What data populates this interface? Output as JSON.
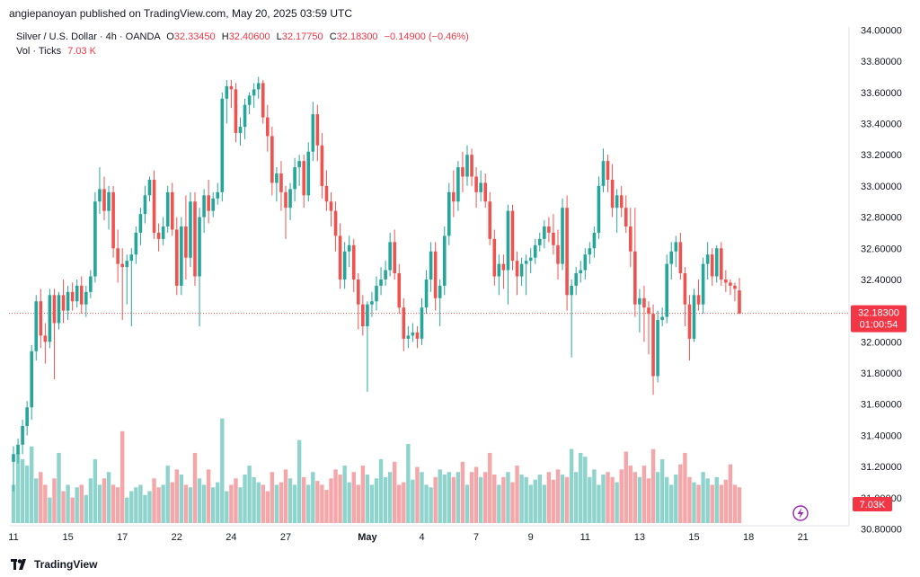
{
  "header": {
    "text": "angiepanoyan published on TradingView.com, May 20, 2025 03:59 UTC"
  },
  "legend": {
    "symbol": "Silver / U.S. Dollar · 4h · OANDA",
    "o_label": "O",
    "o_value": "32.33450",
    "h_label": "H",
    "h_value": "32.40600",
    "l_label": "L",
    "l_value": "32.17750",
    "c_label": "C",
    "c_value": "32.18300",
    "change": "−0.14900 (−0.46%)",
    "vol_label": "Vol · Ticks",
    "vol_value": "7.03 K"
  },
  "footer": {
    "brand": "TradingView"
  },
  "colors": {
    "up": "#26a69a",
    "down": "#ef5350",
    "up_vol": "#8fd3cd",
    "down_vol": "#f4a6a8",
    "price_badge": "#f23645"
  },
  "chart_data": {
    "type": "candlestick",
    "price_axis": {
      "min": 30.82,
      "max": 34.02,
      "ticks": [
        "34.00000",
        "33.80000",
        "33.60000",
        "33.40000",
        "33.20000",
        "33.00000",
        "32.80000",
        "32.60000",
        "32.40000",
        "32.20000",
        "32.00000",
        "31.80000",
        "31.60000",
        "31.40000",
        "31.20000",
        "31.00000",
        "30.80000"
      ]
    },
    "time_axis": {
      "labels": [
        {
          "text": "11",
          "index": 0
        },
        {
          "text": "15",
          "index": 12
        },
        {
          "text": "17",
          "index": 24
        },
        {
          "text": "22",
          "index": 36
        },
        {
          "text": "24",
          "index": 48
        },
        {
          "text": "27",
          "index": 60
        },
        {
          "text": "May",
          "index": 78
        },
        {
          "text": "4",
          "index": 90
        },
        {
          "text": "7",
          "index": 102
        },
        {
          "text": "9",
          "index": 114
        },
        {
          "text": "11",
          "index": 126
        },
        {
          "text": "13",
          "index": 138
        },
        {
          "text": "15",
          "index": 150
        },
        {
          "text": "18",
          "index": 162
        },
        {
          "text": "21",
          "index": 174
        }
      ]
    },
    "last_price": {
      "value": 32.183,
      "label": "32.18300",
      "countdown": "01:00:54"
    },
    "volume_label": "7.03K",
    "candles": [
      [
        31.23,
        31.33,
        31.04,
        31.28
      ],
      [
        31.28,
        31.38,
        31.22,
        31.34
      ],
      [
        31.34,
        31.5,
        31.28,
        31.46
      ],
      [
        31.46,
        31.62,
        31.4,
        31.58
      ],
      [
        31.58,
        31.98,
        31.5,
        31.94
      ],
      [
        31.94,
        32.3,
        31.88,
        32.26
      ],
      [
        32.26,
        32.34,
        31.96,
        32.04
      ],
      [
        32.04,
        32.12,
        31.86,
        32.0
      ],
      [
        32.0,
        32.34,
        31.96,
        32.3
      ],
      [
        32.3,
        32.34,
        31.76,
        32.12
      ],
      [
        32.12,
        32.32,
        32.08,
        32.3
      ],
      [
        32.3,
        32.4,
        32.12,
        32.2
      ],
      [
        32.2,
        32.36,
        32.14,
        32.32
      ],
      [
        32.32,
        32.38,
        32.2,
        32.26
      ],
      [
        32.26,
        32.4,
        32.22,
        32.36
      ],
      [
        32.36,
        32.42,
        32.18,
        32.24
      ],
      [
        32.24,
        32.36,
        32.16,
        32.32
      ],
      [
        32.32,
        32.46,
        32.28,
        32.42
      ],
      [
        32.42,
        32.96,
        32.38,
        32.9
      ],
      [
        32.9,
        33.12,
        32.82,
        32.98
      ],
      [
        32.98,
        33.06,
        32.78,
        32.84
      ],
      [
        32.84,
        33.0,
        32.72,
        32.96
      ],
      [
        32.96,
        33.0,
        32.54,
        32.6
      ],
      [
        32.6,
        32.72,
        32.38,
        32.5
      ],
      [
        32.5,
        32.6,
        32.14,
        32.48
      ],
      [
        32.48,
        32.56,
        32.24,
        32.52
      ],
      [
        32.52,
        32.6,
        32.1,
        32.56
      ],
      [
        32.56,
        32.74,
        32.5,
        32.7
      ],
      [
        32.7,
        32.86,
        32.62,
        32.82
      ],
      [
        32.82,
        33.0,
        32.76,
        32.94
      ],
      [
        32.94,
        33.06,
        32.9,
        33.04
      ],
      [
        33.04,
        33.1,
        32.66,
        32.7
      ],
      [
        32.7,
        32.76,
        32.58,
        32.66
      ],
      [
        32.66,
        32.8,
        32.62,
        32.74
      ],
      [
        32.74,
        33.0,
        32.7,
        32.96
      ],
      [
        32.96,
        33.02,
        32.68,
        32.72
      ],
      [
        32.72,
        32.8,
        32.3,
        32.36
      ],
      [
        32.36,
        32.8,
        32.3,
        32.74
      ],
      [
        32.74,
        32.94,
        32.4,
        32.54
      ],
      [
        32.54,
        32.96,
        32.48,
        32.9
      ],
      [
        32.9,
        32.96,
        32.36,
        32.42
      ],
      [
        32.42,
        32.86,
        32.1,
        32.8
      ],
      [
        32.8,
        32.98,
        32.7,
        32.94
      ],
      [
        32.94,
        33.04,
        32.76,
        32.84
      ],
      [
        32.84,
        32.96,
        32.8,
        32.92
      ],
      [
        32.92,
        33.02,
        32.88,
        32.96
      ],
      [
        32.96,
        33.6,
        32.9,
        33.56
      ],
      [
        33.56,
        33.68,
        33.4,
        33.64
      ],
      [
        33.64,
        33.68,
        33.5,
        33.62
      ],
      [
        33.62,
        33.66,
        33.28,
        33.34
      ],
      [
        33.34,
        33.44,
        33.26,
        33.38
      ],
      [
        33.38,
        33.56,
        33.3,
        33.52
      ],
      [
        33.52,
        33.6,
        33.46,
        33.58
      ],
      [
        33.58,
        33.66,
        33.5,
        33.62
      ],
      [
        33.62,
        33.7,
        33.56,
        33.66
      ],
      [
        33.66,
        33.68,
        33.4,
        33.44
      ],
      [
        33.44,
        33.52,
        33.22,
        33.32
      ],
      [
        33.32,
        33.38,
        32.94,
        33.02
      ],
      [
        33.02,
        33.12,
        32.9,
        33.08
      ],
      [
        33.08,
        33.16,
        32.84,
        32.96
      ],
      [
        32.96,
        33.0,
        32.66,
        32.86
      ],
      [
        32.86,
        33.02,
        32.78,
        32.98
      ],
      [
        32.98,
        33.18,
        32.9,
        33.12
      ],
      [
        33.12,
        33.2,
        33.0,
        33.16
      ],
      [
        33.16,
        33.2,
        32.86,
        32.94
      ],
      [
        32.94,
        33.28,
        32.9,
        33.22
      ],
      [
        33.22,
        33.54,
        33.16,
        33.46
      ],
      [
        33.46,
        33.52,
        33.16,
        33.26
      ],
      [
        33.26,
        33.34,
        32.92,
        33.0
      ],
      [
        33.0,
        33.1,
        32.84,
        32.9
      ],
      [
        32.9,
        32.96,
        32.74,
        32.84
      ],
      [
        32.84,
        32.9,
        32.58,
        32.68
      ],
      [
        32.68,
        32.76,
        32.34,
        32.4
      ],
      [
        32.4,
        32.64,
        32.34,
        32.58
      ],
      [
        32.58,
        32.68,
        32.48,
        32.62
      ],
      [
        32.62,
        32.66,
        32.32,
        32.4
      ],
      [
        32.4,
        32.44,
        32.08,
        32.24
      ],
      [
        32.24,
        32.3,
        32.04,
        32.1
      ],
      [
        32.1,
        32.26,
        31.68,
        32.24
      ],
      [
        32.24,
        32.32,
        32.16,
        32.26
      ],
      [
        32.26,
        32.42,
        32.2,
        32.36
      ],
      [
        32.36,
        32.48,
        32.3,
        32.4
      ],
      [
        32.4,
        32.52,
        32.36,
        32.46
      ],
      [
        32.46,
        32.7,
        32.42,
        32.64
      ],
      [
        32.64,
        32.72,
        32.4,
        32.44
      ],
      [
        32.44,
        32.5,
        32.18,
        32.22
      ],
      [
        32.22,
        32.28,
        31.94,
        32.02
      ],
      [
        32.02,
        32.1,
        31.96,
        32.04
      ],
      [
        32.04,
        32.12,
        32.0,
        32.06
      ],
      [
        32.06,
        32.1,
        31.96,
        32.02
      ],
      [
        32.02,
        32.28,
        31.98,
        32.22
      ],
      [
        32.22,
        32.46,
        32.18,
        32.4
      ],
      [
        32.4,
        32.64,
        32.32,
        32.58
      ],
      [
        32.58,
        32.64,
        32.2,
        32.28
      ],
      [
        32.28,
        32.4,
        32.1,
        32.36
      ],
      [
        32.36,
        32.74,
        32.3,
        32.68
      ],
      [
        32.68,
        33.02,
        32.62,
        32.96
      ],
      [
        32.96,
        33.1,
        32.8,
        32.9
      ],
      [
        32.9,
        33.16,
        32.84,
        33.12
      ],
      [
        33.12,
        33.22,
        32.96,
        33.06
      ],
      [
        33.06,
        33.26,
        33.0,
        33.2
      ],
      [
        33.2,
        33.24,
        33.0,
        33.06
      ],
      [
        33.06,
        33.12,
        32.86,
        32.96
      ],
      [
        32.96,
        33.1,
        32.9,
        33.02
      ],
      [
        33.02,
        33.08,
        32.86,
        32.9
      ],
      [
        32.9,
        32.96,
        32.62,
        32.66
      ],
      [
        32.66,
        32.72,
        32.36,
        32.42
      ],
      [
        32.42,
        32.56,
        32.3,
        32.5
      ],
      [
        32.5,
        32.56,
        32.34,
        32.46
      ],
      [
        32.46,
        32.88,
        32.24,
        32.84
      ],
      [
        32.84,
        32.88,
        32.46,
        32.52
      ],
      [
        32.52,
        32.58,
        32.3,
        32.42
      ],
      [
        32.42,
        32.54,
        32.36,
        32.5
      ],
      [
        32.5,
        32.56,
        32.3,
        32.52
      ],
      [
        32.52,
        32.6,
        32.44,
        32.54
      ],
      [
        32.54,
        32.66,
        32.5,
        32.62
      ],
      [
        32.62,
        32.7,
        32.58,
        32.66
      ],
      [
        32.66,
        32.78,
        32.6,
        32.74
      ],
      [
        32.74,
        32.8,
        32.64,
        32.7
      ],
      [
        32.7,
        32.82,
        32.56,
        32.62
      ],
      [
        32.62,
        32.72,
        32.4,
        32.5
      ],
      [
        32.5,
        32.92,
        32.46,
        32.86
      ],
      [
        32.86,
        32.94,
        32.2,
        32.3
      ],
      [
        32.3,
        32.4,
        31.9,
        32.36
      ],
      [
        32.36,
        32.48,
        32.3,
        32.44
      ],
      [
        32.44,
        32.52,
        32.38,
        32.46
      ],
      [
        32.46,
        32.6,
        32.4,
        32.56
      ],
      [
        32.56,
        32.64,
        32.5,
        32.6
      ],
      [
        32.6,
        32.74,
        32.54,
        32.7
      ],
      [
        32.7,
        33.06,
        32.66,
        33.0
      ],
      [
        33.0,
        33.24,
        32.96,
        33.16
      ],
      [
        33.16,
        33.2,
        32.96,
        33.04
      ],
      [
        33.04,
        33.14,
        32.8,
        32.86
      ],
      [
        32.86,
        32.98,
        32.7,
        32.94
      ],
      [
        32.94,
        33.0,
        32.8,
        32.86
      ],
      [
        32.86,
        32.94,
        32.7,
        32.74
      ],
      [
        32.74,
        32.86,
        32.48,
        32.58
      ],
      [
        32.58,
        32.86,
        32.16,
        32.24
      ],
      [
        32.24,
        32.34,
        32.06,
        32.28
      ],
      [
        32.28,
        32.36,
        32.0,
        32.22
      ],
      [
        32.22,
        32.26,
        31.92,
        32.18
      ],
      [
        32.18,
        32.24,
        31.66,
        31.78
      ],
      [
        31.78,
        32.2,
        31.74,
        32.14
      ],
      [
        32.14,
        32.22,
        32.1,
        32.16
      ],
      [
        32.16,
        32.56,
        32.12,
        32.5
      ],
      [
        32.5,
        32.64,
        32.4,
        32.58
      ],
      [
        32.58,
        32.68,
        32.48,
        32.64
      ],
      [
        32.64,
        32.7,
        32.4,
        32.44
      ],
      [
        32.44,
        32.48,
        32.1,
        32.24
      ],
      [
        32.24,
        32.3,
        31.88,
        32.02
      ],
      [
        32.02,
        32.34,
        32.0,
        32.3
      ],
      [
        32.3,
        32.4,
        32.2,
        32.24
      ],
      [
        32.24,
        32.54,
        32.18,
        32.5
      ],
      [
        32.5,
        32.64,
        32.4,
        32.56
      ],
      [
        32.56,
        32.6,
        32.36,
        32.42
      ],
      [
        32.42,
        32.62,
        32.38,
        32.6
      ],
      [
        32.6,
        32.64,
        32.36,
        32.4
      ],
      [
        32.4,
        32.46,
        32.32,
        32.38
      ],
      [
        32.38,
        32.4,
        32.3,
        32.36
      ],
      [
        32.36,
        32.38,
        32.26,
        32.34
      ],
      [
        32.33,
        32.41,
        32.18,
        32.18
      ]
    ],
    "volumes": [
      0.3,
      0.55,
      0.5,
      0.45,
      0.6,
      0.35,
      0.4,
      0.3,
      0.2,
      0.35,
      0.55,
      0.25,
      0.3,
      0.2,
      0.28,
      0.3,
      0.22,
      0.35,
      0.5,
      0.3,
      0.35,
      0.4,
      0.3,
      0.28,
      0.72,
      0.2,
      0.25,
      0.28,
      0.3,
      0.22,
      0.25,
      0.35,
      0.28,
      0.3,
      0.45,
      0.32,
      0.42,
      0.38,
      0.3,
      0.28,
      0.55,
      0.35,
      0.3,
      0.42,
      0.28,
      0.32,
      0.82,
      0.25,
      0.3,
      0.35,
      0.28,
      0.38,
      0.45,
      0.36,
      0.32,
      0.3,
      0.25,
      0.4,
      0.3,
      0.32,
      0.42,
      0.35,
      0.3,
      0.65,
      0.36,
      0.3,
      0.4,
      0.33,
      0.3,
      0.26,
      0.35,
      0.42,
      0.38,
      0.45,
      0.32,
      0.4,
      0.3,
      0.45,
      0.38,
      0.3,
      0.35,
      0.5,
      0.36,
      0.4,
      0.48,
      0.3,
      0.32,
      0.62,
      0.34,
      0.44,
      0.4,
      0.3,
      0.28,
      0.36,
      0.42,
      0.38,
      0.4,
      0.36,
      0.4,
      0.48,
      0.3,
      0.4,
      0.44,
      0.36,
      0.4,
      0.55,
      0.38,
      0.3,
      0.36,
      0.4,
      0.32,
      0.45,
      0.38,
      0.36,
      0.3,
      0.34,
      0.38,
      0.3,
      0.4,
      0.34,
      0.42,
      0.38,
      0.36,
      0.58,
      0.4,
      0.55,
      0.52,
      0.36,
      0.42,
      0.3,
      0.38,
      0.4,
      0.36,
      0.32,
      0.42,
      0.56,
      0.45,
      0.4,
      0.36,
      0.45,
      0.35,
      0.58,
      0.4,
      0.5,
      0.36,
      0.3,
      0.38,
      0.46,
      0.55,
      0.36,
      0.32,
      0.3,
      0.4,
      0.35,
      0.3,
      0.36,
      0.3,
      0.34,
      0.46,
      0.3,
      0.28,
      0.25,
      0.36,
      0.34,
      0.24
    ],
    "volume_max": 1.0
  }
}
